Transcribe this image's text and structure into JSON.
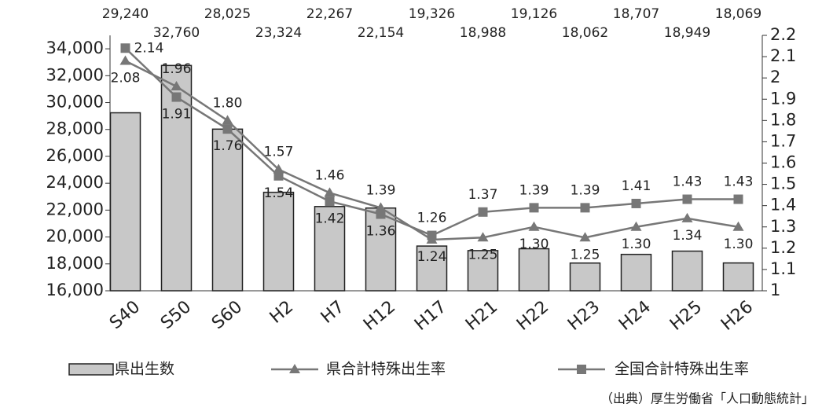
{
  "chart_data": {
    "type": "bar_line",
    "categories": [
      "S40",
      "S50",
      "S60",
      "H2",
      "H7",
      "H12",
      "H17",
      "H21",
      "H22",
      "H23",
      "H24",
      "H25",
      "H26"
    ],
    "series": [
      {
        "name": "県出生数",
        "type": "bar",
        "color": "#c8c8c8",
        "values": [
          29240,
          32760,
          28025,
          23324,
          22267,
          22154,
          19326,
          18988,
          19126,
          18062,
          18707,
          18949,
          18069
        ],
        "value_labels": [
          "29,240",
          "32,760",
          "28,025",
          "23,324",
          "22,267",
          "22,154",
          "19,326",
          "18,988",
          "19,126",
          "18,062",
          "18,707",
          "18,949",
          "18,069"
        ]
      },
      {
        "name": "県合計特殊出生率",
        "type": "line",
        "axis": "y2",
        "marker": "triangle",
        "color": "#777777",
        "values": [
          2.08,
          1.96,
          1.8,
          1.57,
          1.46,
          1.39,
          1.24,
          1.25,
          1.3,
          1.25,
          1.3,
          1.34,
          1.3
        ],
        "value_labels": [
          "2.08",
          "1.96",
          "1.80",
          "1.57",
          "1.46",
          "1.39",
          "1.24",
          "1.25",
          "1.30",
          "1.25",
          "1.30",
          "1.34",
          "1.30"
        ]
      },
      {
        "name": "全国合計特殊出生率",
        "type": "line",
        "axis": "y2",
        "marker": "square",
        "color": "#777777",
        "values": [
          2.14,
          1.91,
          1.76,
          1.54,
          1.42,
          1.36,
          1.26,
          1.37,
          1.39,
          1.39,
          1.41,
          1.43,
          1.43
        ],
        "value_labels": [
          "2.14",
          "1.91",
          "1.76",
          "1.54",
          "1.42",
          "1.36",
          "1.26",
          "1.37",
          "1.39",
          "1.39",
          "1.41",
          "1.43",
          "1.43"
        ]
      }
    ],
    "ylim": [
      16000,
      35000
    ],
    "yticks": [
      {
        "value": 16000,
        "label": "16,000"
      },
      {
        "value": 18000,
        "label": "18,000"
      },
      {
        "value": 20000,
        "label": "20,000"
      },
      {
        "value": 22000,
        "label": "22,000"
      },
      {
        "value": 24000,
        "label": "24,000"
      },
      {
        "value": 26000,
        "label": "26,000"
      },
      {
        "value": 28000,
        "label": "28,000"
      },
      {
        "value": 30000,
        "label": "30,000"
      },
      {
        "value": 32000,
        "label": "32,000"
      },
      {
        "value": 34000,
        "label": "34,000"
      }
    ],
    "y2lim": [
      1,
      2.2
    ],
    "y2ticks": [
      1,
      1.1,
      1.2,
      1.3,
      1.4,
      1.5,
      1.6,
      1.7,
      1.8,
      1.9,
      2,
      2.1,
      2.2
    ],
    "source": "（出典）厚生労働省「人口動態統計」"
  }
}
